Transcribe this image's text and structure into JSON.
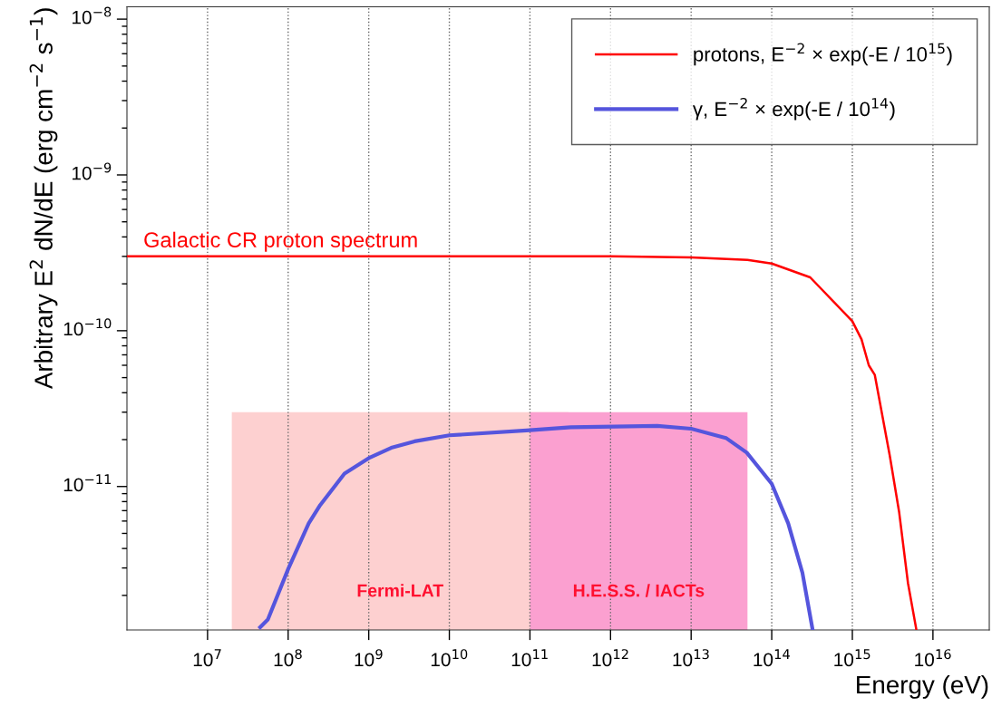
{
  "chart_data": {
    "type": "line",
    "xlabel": "Energy (eV)",
    "ylabel": "Arbitrary E$^{2}$ dN/dE (erg cm$^{−2}$ s$^{−1}$)",
    "log": "xy",
    "grid": "x",
    "legend": "top right",
    "xlim": [
      1000000.0,
      5e+16
    ],
    "ylim": [
      1.2e-12,
      1.2e-08
    ],
    "xticks": [
      {
        "value": 10000000.0,
        "label": "10$^{7}$"
      },
      {
        "value": 100000000.0,
        "label": "10$^{8}$"
      },
      {
        "value": 1000000000.0,
        "label": "10$^{9}$"
      },
      {
        "value": 10000000000.0,
        "label": "10$^{10}$"
      },
      {
        "value": 100000000000.0,
        "label": "10$^{11}$"
      },
      {
        "value": 1000000000000.0,
        "label": "10$^{12}$"
      },
      {
        "value": 10000000000000.0,
        "label": "10$^{13}$"
      },
      {
        "value": 100000000000000.0,
        "label": "10$^{14}$"
      },
      {
        "value": 1000000000000000.0,
        "label": "10$^{15}$"
      },
      {
        "value": 1e+16,
        "label": "10$^{16}$"
      }
    ],
    "yticks": [
      {
        "value": 1e-11,
        "label": "10$^{−11}$"
      },
      {
        "value": 1e-10,
        "label": "10$^{−10}$"
      },
      {
        "value": 1e-09,
        "label": "10$^{−9}$"
      },
      {
        "value": 1e-08,
        "label": "10$^{−8}$"
      }
    ],
    "series": [
      {
        "type": "area",
        "name": "Fermi-LAT",
        "color": "#fdd0d0",
        "x": [
          20000000.0,
          300000000000.0
        ],
        "values": [
          3e-11,
          3e-11
        ]
      },
      {
        "type": "area",
        "name": "H.E.S.S. / IACTs",
        "color": "#fba0d0",
        "x": [
          100000000000.0,
          50000000000000.0
        ],
        "values": [
          3e-11,
          3e-11
        ]
      },
      {
        "name": "protons, E$^{−2}$ × exp(-E / 10$^{15}$)",
        "color": "#ff0000",
        "x": [
          1000000.0,
          1000000000000.0,
          10000000000000.0,
          50000000000000.0,
          100000000000000.0,
          300000000000000.0,
          1000000000000000.0,
          1300000000000000.0,
          1600000000000000.0,
          1900000000000000.0,
          2900000000000000.0,
          3800000000000000.0,
          4900000000000000.0,
          6200000000000000.0
        ],
        "values": [
          3e-10,
          3e-10,
          2.95e-10,
          2.85e-10,
          2.7e-10,
          2.2e-10,
          1.15e-10,
          8.8e-11,
          6e-11,
          5.2e-11,
          1.6e-11,
          6.9e-12,
          2.4e-12,
          1.22e-12
        ]
      },
      {
        "name": "γ, E$^{−2}$ × exp(-E / 10$^{14}$)",
        "color": "#5555dd",
        "x": [
          45000000.0,
          56000000.0,
          100000000.0,
          180000000.0,
          250000000.0,
          500000000.0,
          1000000000.0,
          1900000000.0,
          3700000000.0,
          10000000000.0,
          100000000000.0,
          320000000000.0,
          3800000000000.0,
          10000000000000.0,
          27000000000000.0,
          49000000000000.0,
          100000000000000.0,
          160000000000000.0,
          240000000000000.0,
          320000000000000.0
        ],
        "values": [
          1.25e-12,
          1.4e-12,
          2.95e-12,
          5.8e-12,
          7.6e-12,
          1.21e-11,
          1.52e-11,
          1.77e-11,
          1.95e-11,
          2.13e-11,
          2.3e-11,
          2.4e-11,
          2.45e-11,
          2.35e-11,
          2.05e-11,
          1.65e-11,
          1.04e-11,
          5.8e-12,
          2.8e-12,
          1.22e-12
        ]
      }
    ],
    "annotations": [
      "Galactic CR proton spectrum"
    ]
  }
}
